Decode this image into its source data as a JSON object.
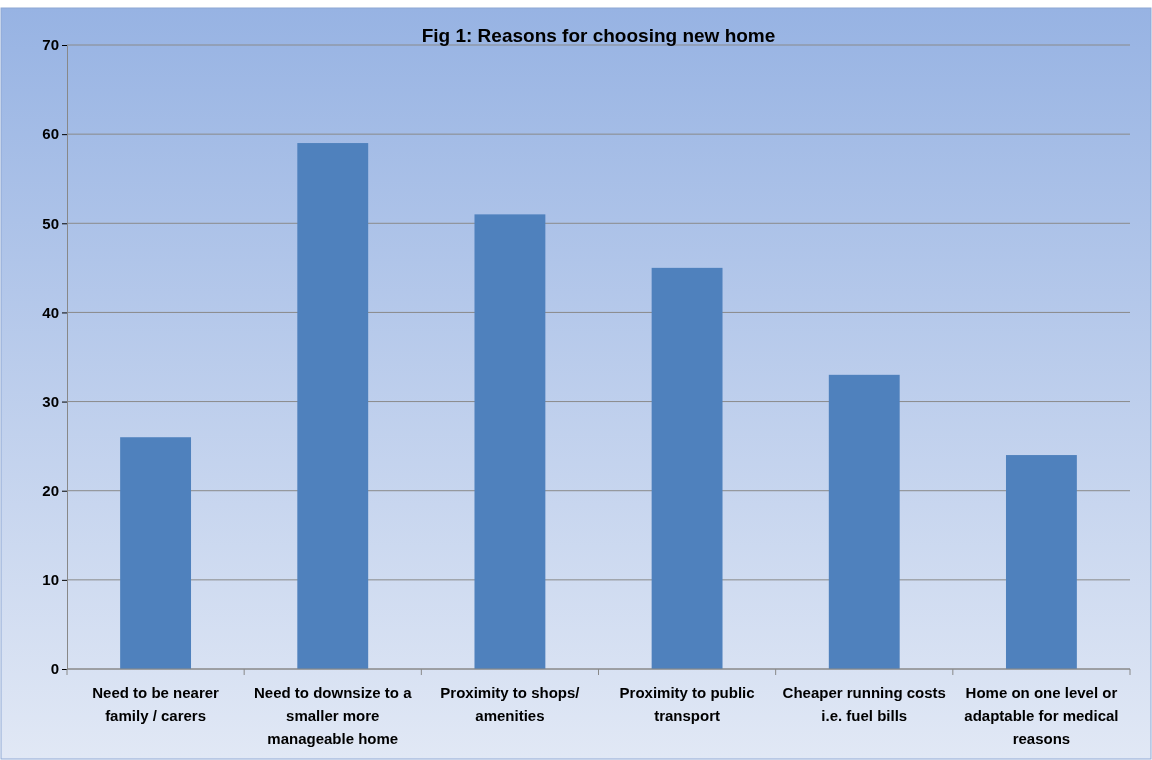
{
  "chart_data": {
    "type": "bar",
    "title": "Fig 1: Reasons for choosing new home",
    "categories": [
      "Need to be nearer family / carers",
      "Need to downsize to a smaller more manageable home",
      "Proximity to shops/ amenities",
      "Proximity to public transport",
      "Cheaper running costs i.e. fuel bills",
      "Home on one level or adaptable for medical reasons"
    ],
    "values": [
      26,
      59,
      51,
      45,
      33,
      24
    ],
    "color": "#4f81bd",
    "ylim": [
      0,
      70
    ],
    "yticks": [
      0,
      10,
      20,
      30,
      40,
      50,
      60,
      70
    ],
    "grid": "y"
  }
}
